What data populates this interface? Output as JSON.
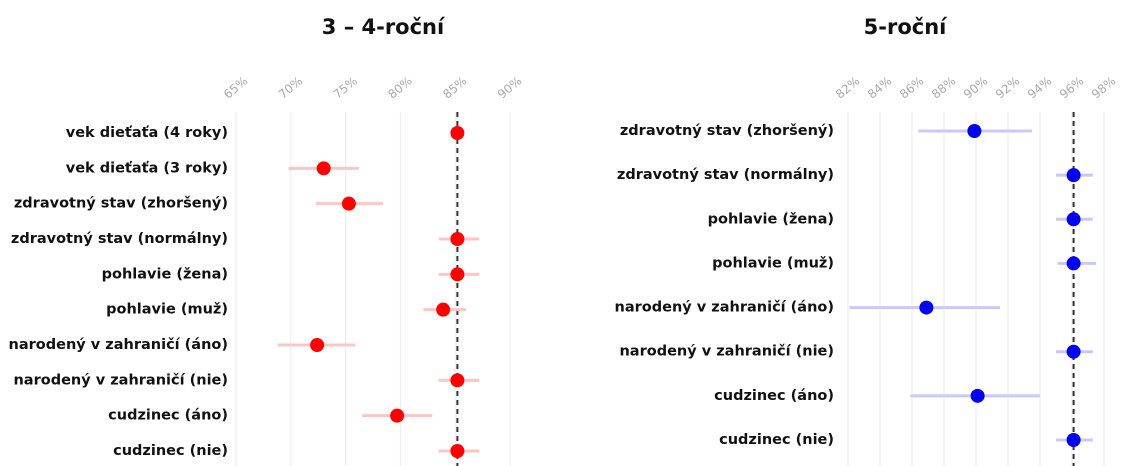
{
  "chart_data": [
    {
      "type": "dot-errorbar",
      "title": "3 – 4-roční",
      "categories": [
        "vek dieťaťa (4 roky)",
        "vek dieťaťa (3 roky)",
        "zdravotný stav (zhoršený)",
        "zdravotný stav (normálny)",
        "pohlavie (žena)",
        "pohlavie (muž)",
        "narodený v zahraničí (áno)",
        "narodený v zahraničí (nie)",
        "cudzinec (áno)",
        "cudzinec (nie)"
      ],
      "values": [
        85.2,
        73.0,
        75.3,
        85.2,
        85.2,
        83.9,
        72.4,
        85.2,
        79.7,
        85.2
      ],
      "lower": [
        85.0,
        69.8,
        72.3,
        83.5,
        83.5,
        82.1,
        68.8,
        83.5,
        76.5,
        83.5
      ],
      "upper": [
        85.4,
        76.2,
        78.4,
        87.2,
        87.2,
        86.0,
        75.9,
        87.2,
        82.9,
        87.2
      ],
      "reference": 85.2,
      "color": "#ff0000",
      "ci_color": "#ffc4c4",
      "xlim": [
        65,
        90
      ],
      "xticks": [
        {
          "value": 65,
          "label": "65%"
        },
        {
          "value": 70,
          "label": "70%"
        },
        {
          "value": 75,
          "label": "75%"
        },
        {
          "value": 80,
          "label": "80%"
        },
        {
          "value": 85,
          "label": "85%"
        },
        {
          "value": 90,
          "label": "90%"
        }
      ],
      "grid": true
    },
    {
      "type": "dot-errorbar",
      "title": "5-roční",
      "categories": [
        "zdravotný stav (zhoršený)",
        "zdravotný stav (normálny)",
        "pohlavie (žena)",
        "pohlavie (muž)",
        "narodený v zahraničí (áno)",
        "narodený v zahraničí (nie)",
        "cudzinec (áno)",
        "cudzinec (nie)"
      ],
      "values": [
        89.9,
        96.1,
        96.1,
        96.1,
        86.9,
        96.1,
        90.1,
        96.1
      ],
      "lower": [
        86.4,
        95.0,
        95.0,
        95.1,
        82.1,
        95.0,
        85.9,
        95.0
      ],
      "upper": [
        93.5,
        97.3,
        97.3,
        97.5,
        91.5,
        97.3,
        94.0,
        97.3
      ],
      "reference": 96.1,
      "color": "#0000ee",
      "ci_color": "#c8c8ff",
      "xlim": [
        82,
        98
      ],
      "xticks": [
        {
          "value": 82,
          "label": "82%"
        },
        {
          "value": 84,
          "label": "84%"
        },
        {
          "value": 86,
          "label": "86%"
        },
        {
          "value": 88,
          "label": "88%"
        },
        {
          "value": 90,
          "label": "90%"
        },
        {
          "value": 92,
          "label": "92%"
        },
        {
          "value": 94,
          "label": "94%"
        },
        {
          "value": 96,
          "label": "96%"
        },
        {
          "value": 98,
          "label": "98%"
        }
      ],
      "grid": true
    }
  ]
}
